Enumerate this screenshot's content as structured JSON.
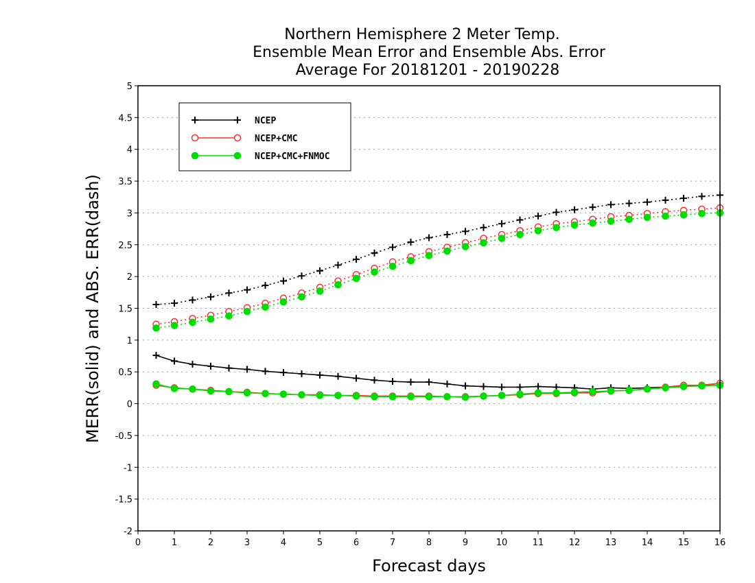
{
  "chart_data": {
    "type": "line",
    "title_lines": [
      "Northern Hemisphere 2 Meter Temp.",
      "Ensemble Mean Error and Ensemble Abs. Error",
      "Average For 20181201 - 20190228"
    ],
    "xlabel": "Forecast days",
    "ylabel": "MERR(solid) and ABS. ERR(dash)",
    "xlim": [
      0,
      16
    ],
    "ylim": [
      -2,
      5
    ],
    "xticks": [
      0,
      1,
      2,
      3,
      4,
      5,
      6,
      7,
      8,
      9,
      10,
      11,
      12,
      13,
      14,
      15,
      16
    ],
    "yticks": [
      -2,
      -1.5,
      -1,
      -0.5,
      0,
      0.5,
      1,
      1.5,
      2,
      2.5,
      3,
      3.5,
      4,
      4.5,
      5
    ],
    "ytick_labels": [
      "-2",
      "-1.5",
      "-1",
      "-0.5",
      "0",
      "0.5",
      "1",
      "1.5",
      "2",
      "2.5",
      "3",
      "3.5",
      "4",
      "4.5",
      "5"
    ],
    "grid": "horizontal-dotted",
    "legend_position": "top-left",
    "x": [
      0.5,
      1,
      1.5,
      2,
      2.5,
      3,
      3.5,
      4,
      4.5,
      5,
      5.5,
      6,
      6.5,
      7,
      7.5,
      8,
      8.5,
      9,
      9.5,
      10,
      10.5,
      11,
      11.5,
      12,
      12.5,
      13,
      13.5,
      14,
      14.5,
      15,
      15.5,
      16
    ],
    "series": [
      {
        "name": "NCEP",
        "color": "#000000",
        "marker": "plus",
        "merr": [
          0.76,
          0.67,
          0.62,
          0.59,
          0.56,
          0.54,
          0.51,
          0.49,
          0.47,
          0.45,
          0.43,
          0.4,
          0.37,
          0.35,
          0.34,
          0.34,
          0.31,
          0.28,
          0.27,
          0.26,
          0.26,
          0.27,
          0.26,
          0.25,
          0.23,
          0.25,
          0.24,
          0.25,
          0.26,
          0.27,
          0.29,
          0.32
        ],
        "abs_err": [
          1.56,
          1.58,
          1.63,
          1.68,
          1.74,
          1.79,
          1.86,
          1.93,
          2.01,
          2.09,
          2.18,
          2.27,
          2.37,
          2.46,
          2.54,
          2.61,
          2.66,
          2.71,
          2.77,
          2.83,
          2.89,
          2.95,
          3.01,
          3.05,
          3.09,
          3.13,
          3.15,
          3.17,
          3.2,
          3.23,
          3.26,
          3.28
        ]
      },
      {
        "name": "NCEP+CMC",
        "color": "#ff3030",
        "marker": "open-circle",
        "merr": [
          0.29,
          0.25,
          0.23,
          0.21,
          0.19,
          0.18,
          0.16,
          0.15,
          0.14,
          0.14,
          0.13,
          0.13,
          0.12,
          0.12,
          0.12,
          0.12,
          0.11,
          0.11,
          0.12,
          0.13,
          0.14,
          0.16,
          0.16,
          0.17,
          0.17,
          0.2,
          0.21,
          0.23,
          0.26,
          0.29,
          0.29,
          0.32
        ],
        "abs_err": [
          1.25,
          1.29,
          1.34,
          1.39,
          1.45,
          1.51,
          1.58,
          1.66,
          1.74,
          1.83,
          1.93,
          2.03,
          2.13,
          2.23,
          2.31,
          2.39,
          2.46,
          2.53,
          2.6,
          2.66,
          2.72,
          2.78,
          2.83,
          2.86,
          2.9,
          2.94,
          2.96,
          2.99,
          3.02,
          3.04,
          3.06,
          3.08
        ]
      },
      {
        "name": "NCEP+CMC+FNMOC",
        "color": "#00dd00",
        "marker": "filled-circle",
        "merr": [
          0.31,
          0.24,
          0.23,
          0.2,
          0.19,
          0.17,
          0.16,
          0.15,
          0.14,
          0.13,
          0.13,
          0.12,
          0.11,
          0.11,
          0.11,
          0.11,
          0.11,
          0.1,
          0.12,
          0.13,
          0.15,
          0.17,
          0.17,
          0.18,
          0.19,
          0.2,
          0.21,
          0.23,
          0.25,
          0.27,
          0.28,
          0.29
        ],
        "abs_err": [
          1.19,
          1.23,
          1.28,
          1.33,
          1.38,
          1.45,
          1.52,
          1.6,
          1.68,
          1.77,
          1.87,
          1.97,
          2.07,
          2.16,
          2.25,
          2.33,
          2.4,
          2.47,
          2.53,
          2.6,
          2.66,
          2.72,
          2.77,
          2.81,
          2.84,
          2.87,
          2.9,
          2.93,
          2.95,
          2.97,
          2.99,
          3.0
        ]
      }
    ]
  }
}
